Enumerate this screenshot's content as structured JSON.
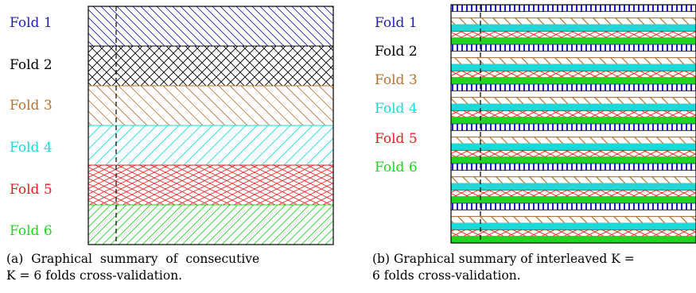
{
  "panels": [
    {
      "id": "a",
      "caption_lines": [
        "(a)  Graphical  summary  of  consecutive",
        "K = 6 folds cross-validation."
      ],
      "folds": [
        {
          "label": "Fold 1",
          "color": "#1f1fbf",
          "pattern": "diagonal-down"
        },
        {
          "label": "Fold 2",
          "color": "#000000",
          "pattern": "crosshatch"
        },
        {
          "label": "Fold 3",
          "color": "#b8732e",
          "pattern": "diagonal-down-wide"
        },
        {
          "label": "Fold 4",
          "color": "#1ad9d9",
          "pattern": "diagonal-up"
        },
        {
          "label": "Fold 5",
          "color": "#e62020",
          "pattern": "crosshatch-dense"
        },
        {
          "label": "Fold 6",
          "color": "#21d521",
          "pattern": "diagonal-up-dense"
        }
      ]
    },
    {
      "id": "b",
      "caption_lines": [
        "(b) Graphical summary of interleaved K =",
        "6 folds cross-validation."
      ],
      "folds": [
        {
          "label": "Fold 1",
          "color": "#1f1fbf",
          "pattern": "vertical-bars"
        },
        {
          "label": "Fold 2",
          "color": "#000000",
          "pattern": "plain"
        },
        {
          "label": "Fold 3",
          "color": "#b8732e",
          "pattern": "diagonal-down"
        },
        {
          "label": "Fold 4",
          "color": "#1ad9d9",
          "pattern": "solid"
        },
        {
          "label": "Fold 5",
          "color": "#e62020",
          "pattern": "crosshatch"
        },
        {
          "label": "Fold 6",
          "color": "#21d521",
          "pattern": "solid"
        }
      ],
      "interleave_cycles": 6
    }
  ]
}
